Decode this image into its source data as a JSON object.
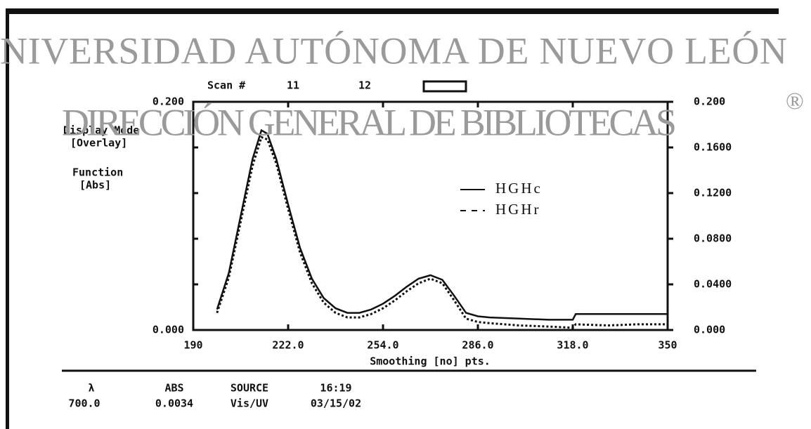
{
  "header": {
    "watermark": [
      "NIVERSIDAD AUTÓNOMA DE NUEVO LEÓN",
      "DIRECCIÓN GENERAL DE BIBLIOTECAS"
    ],
    "registered": "®",
    "scan_label": "Scan #",
    "scans": [
      "11",
      "12"
    ],
    "display_mode": [
      "Display Mode",
      "[Overlay]"
    ],
    "function": [
      "Function",
      "[Abs]"
    ]
  },
  "status": [
    {
      "label": "λ",
      "value": "700.0"
    },
    {
      "label": "ABS",
      "value": "0.0034"
    },
    {
      "label": "SOURCE",
      "value": "Vis/UV"
    },
    {
      "label": "16:19",
      "value": "03/15/02"
    }
  ],
  "chart_data": {
    "type": "line",
    "xlabel": "Smoothing [no] pts.",
    "x": [
      198,
      202,
      206,
      210,
      213,
      215,
      218,
      222,
      226,
      230,
      234,
      238,
      242,
      246,
      250,
      254,
      258,
      262,
      266,
      270,
      274,
      278,
      282,
      286,
      290,
      300,
      310,
      318,
      319,
      330,
      340,
      350
    ],
    "series": [
      {
        "name": "HGHc",
        "color": "#111111",
        "style": "solid",
        "values": [
          0.018,
          0.05,
          0.1,
          0.15,
          0.175,
          0.172,
          0.15,
          0.11,
          0.072,
          0.045,
          0.028,
          0.019,
          0.015,
          0.015,
          0.018,
          0.023,
          0.03,
          0.038,
          0.045,
          0.048,
          0.044,
          0.03,
          0.015,
          0.012,
          0.011,
          0.01,
          0.009,
          0.009,
          0.014,
          0.014,
          0.014,
          0.014
        ]
      },
      {
        "name": "HGHr",
        "color": "#111111",
        "style": "dashed",
        "values": [
          0.015,
          0.046,
          0.095,
          0.144,
          0.169,
          0.167,
          0.146,
          0.106,
          0.068,
          0.041,
          0.024,
          0.015,
          0.011,
          0.011,
          0.014,
          0.019,
          0.026,
          0.034,
          0.041,
          0.045,
          0.041,
          0.026,
          0.01,
          0.007,
          0.006,
          0.004,
          0.003,
          0.002,
          0.005,
          0.004,
          0.005,
          0.005
        ]
      }
    ],
    "xlim": [
      190,
      350
    ],
    "xticks": [
      190,
      {
        "value": 222,
        "label": "222.0"
      },
      {
        "value": 254,
        "label": "254.0"
      },
      {
        "value": 286,
        "label": "286.0"
      },
      {
        "value": 318,
        "label": "318.0"
      },
      350
    ],
    "ylim": [
      0,
      0.2
    ],
    "yticks": [
      {
        "value": 0,
        "label": "0.000"
      },
      {
        "value": 0.2,
        "label": "0.200"
      }
    ],
    "y2lim": [
      0,
      0.2
    ],
    "y2ticks": [
      {
        "value": 0,
        "label": "0.000"
      },
      {
        "value": 0.04,
        "label": "0.0400"
      },
      {
        "value": 0.08,
        "label": "0.0800"
      },
      {
        "value": 0.12,
        "label": "0.1200"
      },
      {
        "value": 0.16,
        "label": "0.1600"
      },
      {
        "value": 0.2,
        "label": "0.200"
      }
    ]
  }
}
